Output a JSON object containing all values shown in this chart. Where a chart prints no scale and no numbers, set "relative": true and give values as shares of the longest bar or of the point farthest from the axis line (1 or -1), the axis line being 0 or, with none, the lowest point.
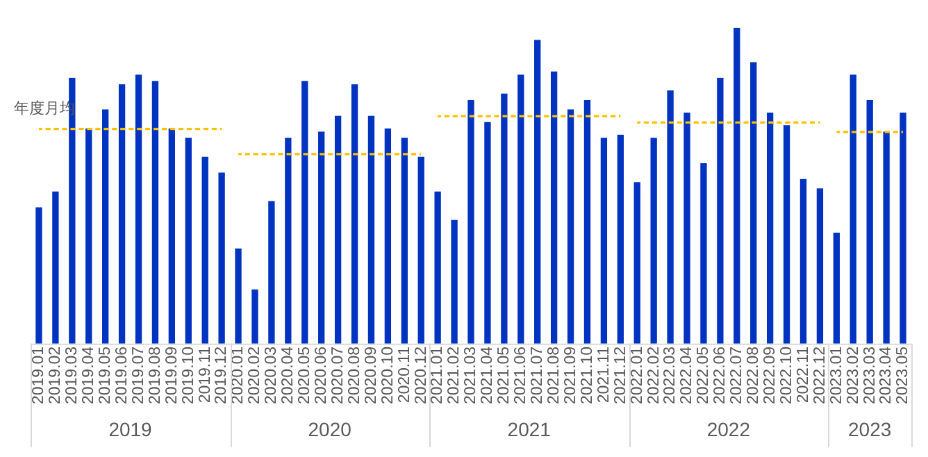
{
  "chart_data": {
    "type": "bar",
    "relative": true,
    "grid": false,
    "legend": false,
    "categories": [
      "2019.01",
      "2019.02",
      "2019.03",
      "2019.04",
      "2019.05",
      "2019.06",
      "2019.07",
      "2019.08",
      "2019.09",
      "2019.10",
      "2019.11",
      "2019.12",
      "2020.01",
      "2020.02",
      "2020.03",
      "2020.04",
      "2020.05",
      "2020.06",
      "2020.07",
      "2020.08",
      "2020.09",
      "2020.10",
      "2020.11",
      "2020.12",
      "2021.01",
      "2021.02",
      "2021.03",
      "2021.04",
      "2021.05",
      "2021.06",
      "2021.07",
      "2021.08",
      "2021.09",
      "2021.10",
      "2021.11",
      "2021.12",
      "2022.01",
      "2022.02",
      "2022.03",
      "2022.04",
      "2022.05",
      "2022.06",
      "2022.07",
      "2022.08",
      "2022.09",
      "2022.10",
      "2022.11",
      "2022.12",
      "2023.01",
      "2023.02",
      "2023.03",
      "2023.04",
      "2023.05"
    ],
    "series": [
      {
        "color": "#0033c0",
        "values": [
          0.43,
          0.48,
          0.84,
          0.68,
          0.74,
          0.82,
          0.85,
          0.83,
          0.68,
          0.65,
          0.59,
          0.54,
          0.3,
          0.17,
          0.45,
          0.65,
          0.83,
          0.67,
          0.72,
          0.82,
          0.72,
          0.68,
          0.65,
          0.59,
          0.48,
          0.39,
          0.77,
          0.7,
          0.79,
          0.85,
          0.96,
          0.86,
          0.74,
          0.77,
          0.65,
          0.66,
          0.51,
          0.65,
          0.8,
          0.73,
          0.57,
          0.84,
          1,
          0.89,
          0.73,
          0.69,
          0.52,
          0.49,
          0.35,
          0.85,
          0.77,
          0.67,
          0.73
        ]
      },
      {
        "type": "line",
        "name": "年度月均",
        "color": "#ffc000",
        "line_style": "dashed",
        "marker": "none",
        "values": [
          0.68,
          0.68,
          0.68,
          0.68,
          0.68,
          0.68,
          0.68,
          0.68,
          0.68,
          0.68,
          0.68,
          0.68,
          null,
          null,
          null,
          null,
          null,
          null,
          null,
          null,
          null,
          null,
          null,
          null,
          null,
          null,
          null,
          null,
          null,
          null,
          null,
          null,
          null,
          null,
          null,
          null,
          null,
          null,
          null,
          null,
          null,
          null,
          null,
          null,
          null,
          null,
          null,
          null,
          null,
          null,
          null,
          null,
          null
        ]
      },
      {
        "type": "line",
        "color": "#ffc000",
        "line_style": "dashed",
        "marker": "none",
        "values": [
          null,
          null,
          null,
          null,
          null,
          null,
          null,
          null,
          null,
          null,
          null,
          null,
          0.6,
          0.6,
          0.6,
          0.6,
          0.6,
          0.6,
          0.6,
          0.6,
          0.6,
          0.6,
          0.6,
          0.6,
          null,
          null,
          null,
          null,
          null,
          null,
          null,
          null,
          null,
          null,
          null,
          null,
          null,
          null,
          null,
          null,
          null,
          null,
          null,
          null,
          null,
          null,
          null,
          null,
          null,
          null,
          null,
          null,
          null
        ]
      },
      {
        "type": "line",
        "color": "#ffc000",
        "line_style": "dashed",
        "marker": "none",
        "values": [
          null,
          null,
          null,
          null,
          null,
          null,
          null,
          null,
          null,
          null,
          null,
          null,
          null,
          null,
          null,
          null,
          null,
          null,
          null,
          null,
          null,
          null,
          null,
          null,
          0.72,
          0.72,
          0.72,
          0.72,
          0.72,
          0.72,
          0.72,
          0.72,
          0.72,
          0.72,
          0.72,
          0.72,
          null,
          null,
          null,
          null,
          null,
          null,
          null,
          null,
          null,
          null,
          null,
          null,
          null,
          null,
          null,
          null,
          null
        ]
      },
      {
        "type": "line",
        "color": "#ffc000",
        "line_style": "dashed",
        "marker": "none",
        "values": [
          null,
          null,
          null,
          null,
          null,
          null,
          null,
          null,
          null,
          null,
          null,
          null,
          null,
          null,
          null,
          null,
          null,
          null,
          null,
          null,
          null,
          null,
          null,
          null,
          null,
          null,
          null,
          null,
          null,
          null,
          null,
          null,
          null,
          null,
          null,
          null,
          0.7,
          0.7,
          0.7,
          0.7,
          0.7,
          0.7,
          0.7,
          0.7,
          0.7,
          0.7,
          0.7,
          0.7,
          null,
          null,
          null,
          null,
          null
        ]
      },
      {
        "type": "line",
        "color": "#ffc000",
        "line_style": "dashed",
        "marker": "none",
        "values": [
          null,
          null,
          null,
          null,
          null,
          null,
          null,
          null,
          null,
          null,
          null,
          null,
          null,
          null,
          null,
          null,
          null,
          null,
          null,
          null,
          null,
          null,
          null,
          null,
          null,
          null,
          null,
          null,
          null,
          null,
          null,
          null,
          null,
          null,
          null,
          null,
          null,
          null,
          null,
          null,
          null,
          null,
          null,
          null,
          null,
          null,
          null,
          null,
          0.67,
          0.67,
          0.67,
          0.67,
          0.67
        ]
      }
    ],
    "annotations": [
      "2019",
      "2020",
      "2021",
      "2022",
      "2023"
    ]
  }
}
